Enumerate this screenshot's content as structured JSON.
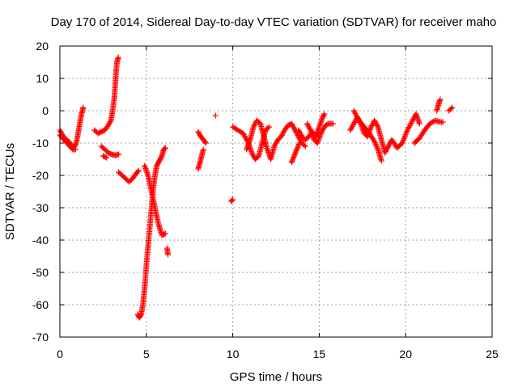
{
  "chart_data": {
    "type": "scatter",
    "title": "Day 170 of 2014, Sidereal Day-to-day VTEC variation (SDTVAR) for receiver maho",
    "xlabel": "GPS time / hours",
    "ylabel": "SDTVAR / TECUs",
    "xlim": [
      0,
      25
    ],
    "ylim": [
      -70,
      20
    ],
    "xticks": [
      0,
      5,
      10,
      15,
      20,
      25
    ],
    "yticks": [
      20,
      10,
      0,
      -10,
      -20,
      -30,
      -40,
      -50,
      -60,
      -70
    ],
    "grid": true,
    "marker": "+",
    "color": "#ff0000",
    "series": [
      {
        "segments": [
          [
            [
              0.0,
              -6
            ],
            [
              0.2,
              -8
            ],
            [
              0.4,
              -9
            ],
            [
              0.6,
              -10
            ],
            [
              0.8,
              -11.5
            ],
            [
              0.95,
              -10
            ],
            [
              1.05,
              -7
            ],
            [
              1.15,
              -4
            ],
            [
              1.25,
              -1
            ],
            [
              1.35,
              1
            ]
          ],
          [
            [
              0.0,
              -7.5
            ],
            [
              0.25,
              -9
            ],
            [
              0.5,
              -10.5
            ],
            [
              0.75,
              -12
            ],
            [
              0.9,
              -12
            ]
          ],
          [
            [
              2.0,
              -6
            ],
            [
              2.2,
              -7
            ],
            [
              2.4,
              -6.5
            ],
            [
              2.6,
              -6
            ],
            [
              2.8,
              -4.5
            ],
            [
              2.95,
              -3
            ],
            [
              3.05,
              0
            ],
            [
              3.15,
              4
            ],
            [
              3.2,
              8
            ],
            [
              3.25,
              12
            ],
            [
              3.3,
              15
            ],
            [
              3.38,
              16.5
            ]
          ],
          [
            [
              2.4,
              -11
            ],
            [
              2.6,
              -12
            ],
            [
              2.8,
              -13
            ],
            [
              3.0,
              -13.5
            ],
            [
              3.2,
              -13.8
            ],
            [
              3.4,
              -13.5
            ]
          ],
          [
            [
              2.5,
              -14
            ],
            [
              2.7,
              -14.5
            ]
          ],
          [
            [
              3.4,
              -19
            ],
            [
              3.6,
              -20
            ],
            [
              3.8,
              -21
            ],
            [
              4.0,
              -22
            ],
            [
              4.2,
              -21
            ],
            [
              4.4,
              -19.5
            ],
            [
              4.55,
              -18.5
            ]
          ],
          [
            [
              4.5,
              -63
            ],
            [
              4.6,
              -64
            ],
            [
              4.7,
              -63
            ],
            [
              4.8,
              -60
            ],
            [
              4.9,
              -55
            ],
            [
              5.0,
              -48
            ],
            [
              5.1,
              -42
            ],
            [
              5.2,
              -36
            ],
            [
              5.3,
              -30
            ],
            [
              5.4,
              -24
            ],
            [
              5.5,
              -20
            ],
            [
              5.6,
              -17
            ],
            [
              5.7,
              -16
            ],
            [
              5.8,
              -15
            ],
            [
              5.9,
              -14
            ],
            [
              6.0,
              -12
            ],
            [
              6.1,
              -11.5
            ]
          ],
          [
            [
              4.9,
              -17
            ],
            [
              5.1,
              -20
            ],
            [
              5.3,
              -25
            ],
            [
              5.5,
              -30
            ],
            [
              5.7,
              -35
            ],
            [
              5.9,
              -38.5
            ],
            [
              6.1,
              -38
            ]
          ],
          [
            [
              6.2,
              -42.5
            ],
            [
              6.25,
              -44.5
            ]
          ],
          [
            [
              8.0,
              -6.5
            ],
            [
              8.15,
              -8
            ],
            [
              8.3,
              -9
            ],
            [
              8.45,
              -10
            ]
          ],
          [
            [
              8.0,
              -18
            ],
            [
              8.1,
              -16
            ],
            [
              8.2,
              -14
            ],
            [
              8.3,
              -12
            ]
          ],
          [
            [
              9.0,
              -1.5
            ]
          ],
          [
            [
              9.9,
              -28
            ],
            [
              10.0,
              -27.5
            ]
          ],
          [
            [
              10.0,
              -5
            ],
            [
              10.3,
              -6
            ],
            [
              10.6,
              -7
            ],
            [
              10.9,
              -10
            ],
            [
              11.1,
              -13
            ],
            [
              11.3,
              -15
            ],
            [
              11.5,
              -14
            ],
            [
              11.7,
              -10
            ],
            [
              11.9,
              -6
            ],
            [
              12.1,
              -5
            ]
          ],
          [
            [
              10.8,
              -12
            ],
            [
              11.0,
              -9
            ],
            [
              11.2,
              -5
            ],
            [
              11.4,
              -3
            ],
            [
              11.6,
              -4
            ],
            [
              11.8,
              -8
            ],
            [
              12.0,
              -12
            ],
            [
              12.2,
              -15
            ],
            [
              12.4,
              -11
            ],
            [
              12.6,
              -9
            ],
            [
              12.8,
              -8
            ],
            [
              13.0,
              -6
            ],
            [
              13.2,
              -4.5
            ],
            [
              13.4,
              -4
            ],
            [
              13.6,
              -6
            ],
            [
              13.8,
              -8
            ],
            [
              14.0,
              -10
            ],
            [
              14.2,
              -11
            ]
          ],
          [
            [
              13.4,
              -16
            ],
            [
              13.55,
              -14
            ],
            [
              13.7,
              -12
            ],
            [
              13.85,
              -10
            ]
          ],
          [
            [
              13.8,
              -6
            ],
            [
              14.0,
              -8
            ],
            [
              14.2,
              -9
            ],
            [
              14.4,
              -8
            ],
            [
              14.6,
              -6.5
            ],
            [
              14.8,
              -8
            ],
            [
              15.0,
              -5
            ],
            [
              15.2,
              -2
            ],
            [
              15.3,
              -1
            ]
          ],
          [
            [
              14.3,
              -4
            ],
            [
              14.5,
              -6
            ],
            [
              14.7,
              -9
            ],
            [
              14.9,
              -10
            ],
            [
              15.1,
              -7
            ],
            [
              15.3,
              -5
            ],
            [
              15.5,
              -4
            ],
            [
              15.8,
              -4
            ]
          ],
          [
            [
              16.8,
              -6
            ],
            [
              17.0,
              -4
            ],
            [
              17.2,
              -2
            ],
            [
              17.4,
              -4
            ],
            [
              17.6,
              -7
            ],
            [
              17.8,
              -8
            ],
            [
              18.0,
              -5
            ],
            [
              18.2,
              -3
            ],
            [
              18.4,
              -5
            ],
            [
              18.6,
              -9
            ],
            [
              18.8,
              -13
            ],
            [
              19.0,
              -11
            ],
            [
              19.2,
              -9
            ],
            [
              19.5,
              -11.5
            ],
            [
              19.8,
              -10
            ],
            [
              20.1,
              -6
            ],
            [
              20.4,
              -3
            ],
            [
              20.6,
              -1
            ],
            [
              20.8,
              -4
            ]
          ],
          [
            [
              17.0,
              0
            ],
            [
              17.3,
              -3
            ],
            [
              17.6,
              -5
            ],
            [
              17.9,
              -7
            ],
            [
              18.2,
              -9.5
            ],
            [
              18.4,
              -12
            ],
            [
              18.6,
              -15.5
            ]
          ],
          [
            [
              20.5,
              -10
            ],
            [
              20.8,
              -8.5
            ],
            [
              21.1,
              -6
            ],
            [
              21.4,
              -4
            ],
            [
              21.7,
              -3
            ],
            [
              22.0,
              -3.5
            ],
            [
              22.15,
              -3.5
            ]
          ],
          [
            [
              21.8,
              0
            ],
            [
              21.9,
              2
            ],
            [
              22.0,
              3.5
            ]
          ],
          [
            [
              22.5,
              0
            ],
            [
              22.7,
              1
            ]
          ]
        ]
      }
    ]
  }
}
